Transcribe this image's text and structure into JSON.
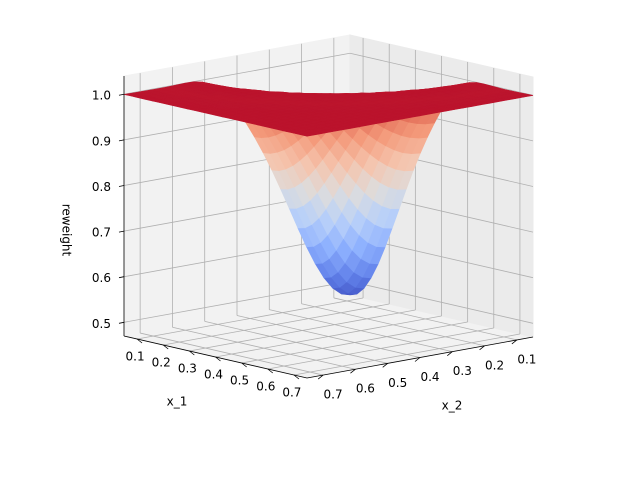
{
  "chart_data": {
    "type": "surface",
    "xlabel": "x_1",
    "ylabel": "x_2",
    "zlabel": "reweight",
    "x_ticks": [
      "0.1",
      "0.2",
      "0.3",
      "0.4",
      "0.5",
      "0.6",
      "0.7"
    ],
    "y_ticks": [
      "0.7",
      "0.6",
      "0.5",
      "0.4",
      "0.3",
      "0.2",
      "0.1"
    ],
    "z_ticks": [
      "0.5",
      "0.6",
      "0.7",
      "0.8",
      "0.9",
      "1.0"
    ],
    "xlim": [
      0.05,
      0.75
    ],
    "ylim": [
      0.05,
      0.75
    ],
    "zlim": [
      0.47,
      1.04
    ],
    "colormap": "coolwarm",
    "grid": true,
    "surface_min": {
      "x1": 0.7,
      "x2": 0.7,
      "reweight": 0.47
    },
    "surface_max": {
      "reweight": 1.0
    }
  }
}
